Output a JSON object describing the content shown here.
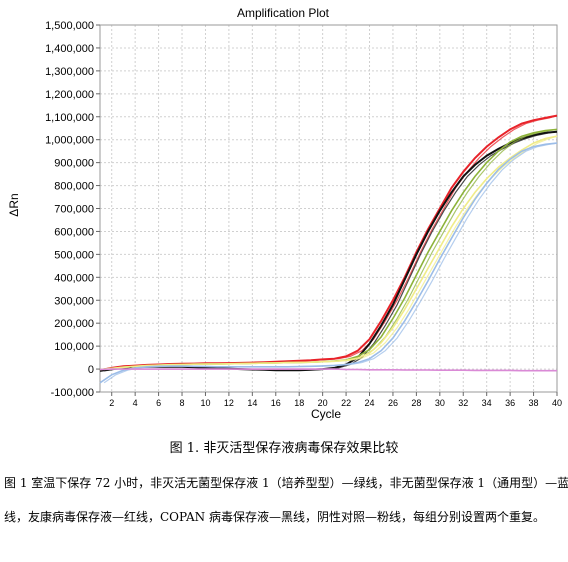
{
  "chart_data": {
    "type": "line",
    "title": "Amplification Plot",
    "xlabel": "Cycle",
    "ylabel": "ΔRn",
    "xlim": [
      1,
      40
    ],
    "ylim": [
      -100000,
      1500000
    ],
    "x_ticks": [
      2,
      4,
      6,
      8,
      10,
      12,
      14,
      16,
      18,
      20,
      22,
      24,
      26,
      28,
      30,
      32,
      34,
      36,
      38,
      40
    ],
    "y_ticks": [
      -100000,
      0,
      100000,
      200000,
      300000,
      400000,
      500000,
      600000,
      700000,
      800000,
      900000,
      1000000,
      1100000,
      1200000,
      1300000,
      1400000,
      1500000
    ],
    "y_tick_labels": [
      "-100,000",
      "0",
      "100,000",
      "200,000",
      "300,000",
      "400,000",
      "500,000",
      "600,000",
      "700,000",
      "800,000",
      "900,000",
      "1,000,000",
      "1,100,000",
      "1,200,000",
      "1,300,000",
      "1,400,000",
      "1,500,000"
    ],
    "grid": true,
    "x": [
      1,
      2,
      3,
      4,
      5,
      6,
      7,
      8,
      9,
      10,
      11,
      12,
      13,
      14,
      15,
      16,
      17,
      18,
      19,
      20,
      21,
      22,
      23,
      24,
      25,
      26,
      27,
      28,
      29,
      30,
      31,
      32,
      33,
      34,
      35,
      36,
      37,
      38,
      39,
      40
    ],
    "series": [
      {
        "color": "#e8232a",
        "values": [
          -5000,
          5000,
          12000,
          15000,
          18000,
          20000,
          22000,
          23000,
          24000,
          25000,
          25000,
          26000,
          27000,
          28000,
          30000,
          32000,
          34000,
          36000,
          38000,
          42000,
          45000,
          55000,
          80000,
          130000,
          210000,
          300000,
          400000,
          510000,
          610000,
          700000,
          790000,
          860000,
          920000,
          970000,
          1010000,
          1045000,
          1070000,
          1085000,
          1095000,
          1105000
        ]
      },
      {
        "color": "#111111",
        "values": [
          -8000,
          0,
          5000,
          8000,
          10000,
          10000,
          10000,
          10000,
          8000,
          5000,
          3000,
          2000,
          0,
          -2000,
          -3000,
          -5000,
          -5000,
          -5000,
          -3000,
          0,
          5000,
          20000,
          50000,
          110000,
          190000,
          280000,
          390000,
          500000,
          600000,
          690000,
          770000,
          840000,
          890000,
          930000,
          960000,
          985000,
          1005000,
          1020000,
          1030000,
          1035000
        ]
      },
      {
        "color": "#8db33a",
        "values": [
          -2000,
          3000,
          8000,
          12000,
          15000,
          17000,
          19000,
          20000,
          21000,
          22000,
          22000,
          23000,
          24000,
          25000,
          26000,
          27000,
          28000,
          29000,
          30000,
          32000,
          35000,
          40000,
          55000,
          85000,
          140000,
          220000,
          310000,
          410000,
          510000,
          600000,
          690000,
          770000,
          840000,
          900000,
          950000,
          990000,
          1015000,
          1030000,
          1040000,
          1045000
        ]
      },
      {
        "color": "#f0ec88",
        "values": [
          -2000,
          3000,
          8000,
          12000,
          15000,
          17000,
          19000,
          20000,
          21000,
          22000,
          22000,
          23000,
          24000,
          25000,
          26000,
          27000,
          28000,
          29000,
          30000,
          32000,
          34000,
          38000,
          48000,
          70000,
          115000,
          180000,
          260000,
          350000,
          440000,
          530000,
          620000,
          700000,
          770000,
          830000,
          880000,
          920000,
          955000,
          985000,
          1005000,
          1015000
        ]
      },
      {
        "color": "#9cbde8",
        "values": [
          -60000,
          -25000,
          -5000,
          5000,
          10000,
          12000,
          13000,
          13000,
          12000,
          11000,
          10000,
          10000,
          10000,
          10000,
          10000,
          10000,
          10000,
          11000,
          12000,
          14000,
          16000,
          20000,
          28000,
          45000,
          80000,
          135000,
          210000,
          295000,
          385000,
          480000,
          570000,
          660000,
          740000,
          810000,
          870000,
          915000,
          950000,
          970000,
          980000,
          985000
        ]
      },
      {
        "color": "#d98ad6",
        "values": [
          -2000,
          0,
          0,
          0,
          0,
          0,
          0,
          0,
          0,
          0,
          0,
          0,
          0,
          0,
          0,
          0,
          0,
          0,
          0,
          0,
          0,
          -2000,
          -2000,
          -3000,
          -3000,
          -3000,
          -4000,
          -4000,
          -4000,
          -5000,
          -5000,
          -5000,
          -6000,
          -6000,
          -6000,
          -6000,
          -7000,
          -7000,
          -7000,
          -7000
        ]
      }
    ]
  },
  "caption": {
    "title": "图 1. 非灭活型保存液病毒保存效果比较",
    "line1": "图 1 室温下保存 72 小时，非灭活无菌型保存液 1（培养型型）—绿线，非无菌型保存液 1（通用型）—蓝",
    "line2": "线，友康病毒保存液—红线，COPAN 病毒保存液—黑线，阴性对照—粉线，每组分别设置两个重复。"
  }
}
